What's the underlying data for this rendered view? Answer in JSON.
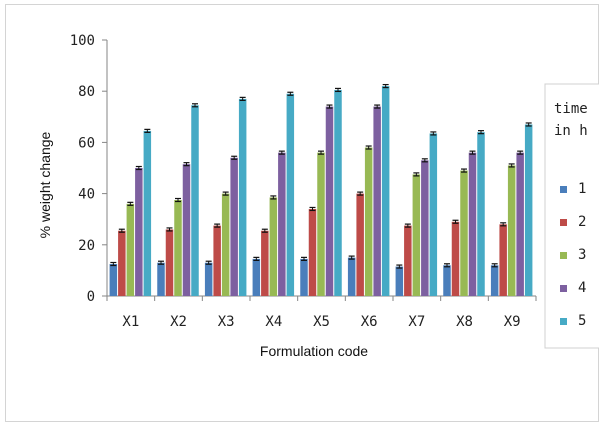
{
  "chart_data": {
    "type": "bar",
    "title": "",
    "xlabel": "Formulation code",
    "ylabel": "% weight change",
    "ylim": [
      0,
      100
    ],
    "yticks": [
      "0",
      "20",
      "40",
      "60",
      "80",
      "100"
    ],
    "categories": [
      "X1",
      "X2",
      "X3",
      "X4",
      "X5",
      "X6",
      "X7",
      "X8",
      "X9"
    ],
    "legend_title_lines": [
      "time",
      "in h"
    ],
    "legend_position": "right",
    "error_bars": true,
    "grid": false,
    "series": [
      {
        "name": "1",
        "color": "#4a7ebb",
        "values": [
          12.5,
          13,
          13,
          14.5,
          14.5,
          15,
          11.5,
          12,
          12
        ]
      },
      {
        "name": "2",
        "color": "#be4b48",
        "values": [
          25.5,
          26,
          27.5,
          25.5,
          34,
          40,
          27.5,
          29,
          28
        ]
      },
      {
        "name": "3",
        "color": "#98b954",
        "values": [
          36,
          37.5,
          40,
          38.5,
          56,
          58,
          47.5,
          49,
          51
        ]
      },
      {
        "name": "4",
        "color": "#7d60a0",
        "values": [
          50,
          51.5,
          54,
          56,
          74,
          74,
          53,
          56,
          56
        ]
      },
      {
        "name": "5",
        "color": "#46aac5",
        "values": [
          64.5,
          74.5,
          77,
          79,
          80.5,
          82,
          63.5,
          64,
          67
        ]
      }
    ]
  }
}
